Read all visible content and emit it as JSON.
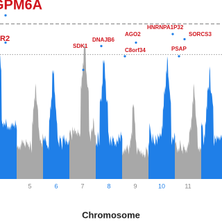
{
  "chart_data": {
    "type": "manhattan",
    "x_label": "Chromosome",
    "categories": [
      null,
      "5",
      "6",
      "7",
      "8",
      "9",
      "10",
      "11",
      null
    ],
    "values": [
      9.6,
      5.6,
      6.4,
      7.9,
      7.0,
      4.4,
      7.2,
      5.6,
      6.6
    ],
    "colors": [
      "#1f7fe8",
      "#a8a8a8"
    ],
    "ylim": [
      0,
      10.5
    ],
    "thresholds": [
      9.1,
      7.3
    ],
    "annotation_color": "#d0141c",
    "annotations": [
      {
        "label": "GPM6A",
        "value": 9.6
      },
      {
        "label": "R2",
        "value": 8.0
      },
      {
        "label": "SDK1",
        "value": 6.4
      },
      {
        "label": "DNAJB6",
        "value": 7.8
      },
      {
        "label": "AGO2",
        "value": 8.0
      },
      {
        "label": "C8orf34",
        "value": 7.2
      },
      {
        "label": "HNRNPA1P32",
        "value": 8.5
      },
      {
        "label": "SORCS3",
        "value": 8.2
      },
      {
        "label": "PSAP",
        "value": 7.2
      }
    ]
  }
}
